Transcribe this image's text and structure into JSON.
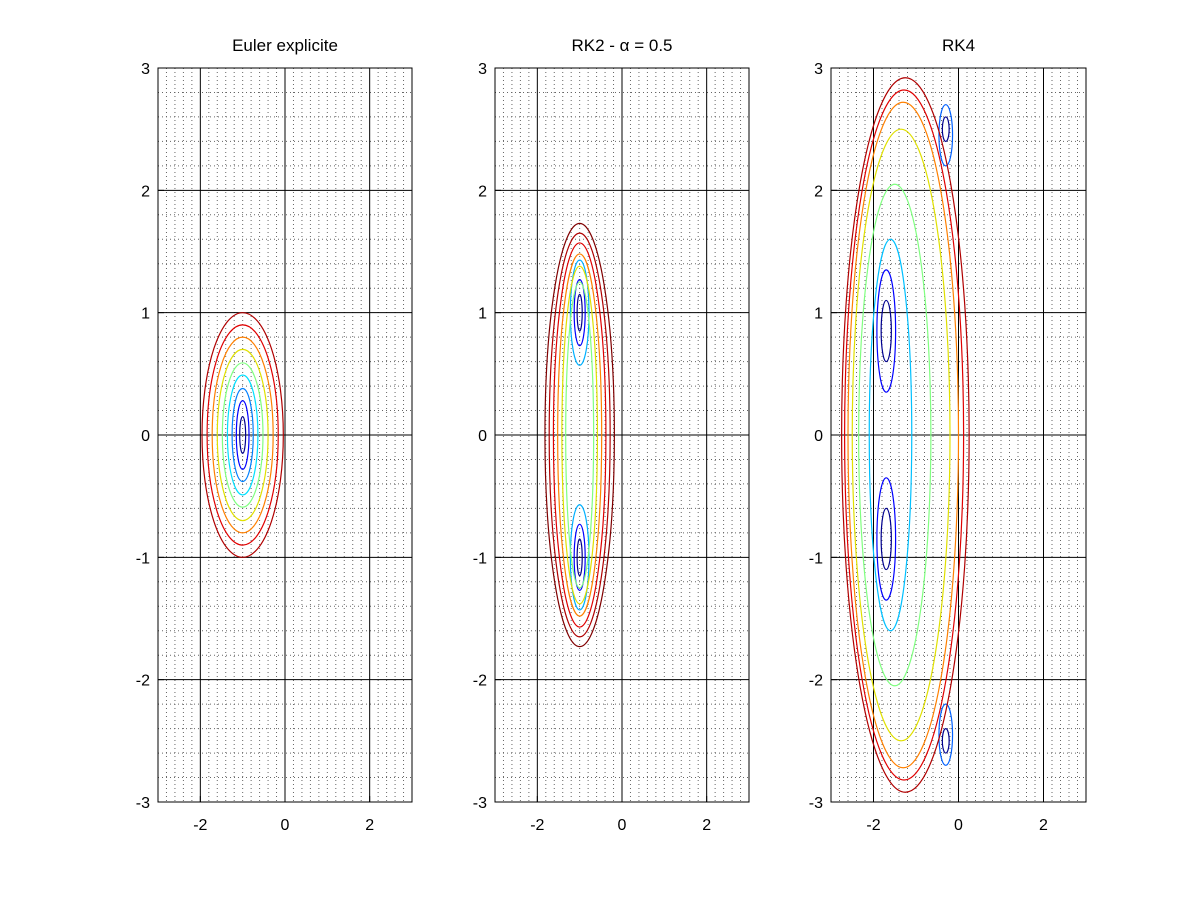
{
  "chart_data": [
    {
      "type": "contour",
      "title": "Euler explicite",
      "xlim": [
        -3,
        3
      ],
      "ylim": [
        -3,
        3
      ],
      "x_ticks": [
        -2,
        0,
        2
      ],
      "y_ticks": [
        -3,
        -2,
        -1,
        0,
        1,
        2,
        3
      ],
      "grid": true,
      "minor_grid": true,
      "centers": [
        [
          -1.0,
          0.0
        ]
      ],
      "contours": [
        {
          "cx": -1.0,
          "cy": 0.0,
          "rx": 0.07,
          "ry": 0.15,
          "color": "#00008f"
        },
        {
          "cx": -1.0,
          "cy": 0.0,
          "rx": 0.15,
          "ry": 0.28,
          "color": "#0000ff"
        },
        {
          "cx": -1.0,
          "cy": 0.0,
          "rx": 0.25,
          "ry": 0.38,
          "color": "#0080ff"
        },
        {
          "cx": -1.0,
          "cy": 0.0,
          "rx": 0.36,
          "ry": 0.49,
          "color": "#00e0ff"
        },
        {
          "cx": -1.0,
          "cy": 0.0,
          "rx": 0.48,
          "ry": 0.59,
          "color": "#80ff80"
        },
        {
          "cx": -1.0,
          "cy": 0.0,
          "rx": 0.6,
          "ry": 0.7,
          "color": "#e0e000"
        },
        {
          "cx": -1.0,
          "cy": 0.0,
          "rx": 0.72,
          "ry": 0.8,
          "color": "#ff8000"
        },
        {
          "cx": -1.0,
          "cy": 0.0,
          "rx": 0.84,
          "ry": 0.9,
          "color": "#e00000"
        },
        {
          "cx": -1.0,
          "cy": 0.0,
          "rx": 0.96,
          "ry": 1.0,
          "color": "#b00000"
        }
      ]
    },
    {
      "type": "contour",
      "title": "RK2 - α = 0.5",
      "xlim": [
        -3,
        3
      ],
      "ylim": [
        -3,
        3
      ],
      "x_ticks": [
        -2,
        0,
        2
      ],
      "y_ticks": [
        -3,
        -2,
        -1,
        0,
        1,
        2,
        3
      ],
      "grid": true,
      "minor_grid": true,
      "centers": [
        [
          -1.0,
          1.0
        ],
        [
          -1.0,
          -1.0
        ]
      ],
      "contours": [
        {
          "cx": -1.0,
          "cy": 1.0,
          "rx": 0.06,
          "ry": 0.15,
          "color": "#00008f"
        },
        {
          "cx": -1.0,
          "cy": -1.0,
          "rx": 0.06,
          "ry": 0.15,
          "color": "#00008f"
        },
        {
          "cx": -1.0,
          "cy": 1.0,
          "rx": 0.13,
          "ry": 0.27,
          "color": "#0000ff"
        },
        {
          "cx": -1.0,
          "cy": -1.0,
          "rx": 0.13,
          "ry": 0.27,
          "color": "#0000ff"
        },
        {
          "cx": -1.0,
          "cy": 1.0,
          "rx": 0.22,
          "ry": 0.43,
          "color": "#00b0ff"
        },
        {
          "cx": -1.0,
          "cy": -1.0,
          "rx": 0.22,
          "ry": 0.43,
          "color": "#00b0ff"
        },
        {
          "cx": -1.0,
          "cy": 0.0,
          "rx": 0.33,
          "ry": 1.25,
          "color": "#80ff80"
        },
        {
          "cx": -1.0,
          "cy": 0.0,
          "rx": 0.42,
          "ry": 1.38,
          "color": "#e0e000"
        },
        {
          "cx": -1.0,
          "cy": 0.0,
          "rx": 0.52,
          "ry": 1.48,
          "color": "#ff8000"
        },
        {
          "cx": -1.0,
          "cy": 0.0,
          "rx": 0.62,
          "ry": 1.57,
          "color": "#e00000"
        },
        {
          "cx": -1.0,
          "cy": 0.0,
          "rx": 0.72,
          "ry": 1.65,
          "color": "#b00000"
        },
        {
          "cx": -1.0,
          "cy": 0.0,
          "rx": 0.82,
          "ry": 1.73,
          "color": "#800000"
        }
      ]
    },
    {
      "type": "contour",
      "title": "RK4",
      "xlim": [
        -3,
        3
      ],
      "ylim": [
        -3,
        3
      ],
      "x_ticks": [
        -2,
        0,
        2
      ],
      "y_ticks": [
        -3,
        -2,
        -1,
        0,
        1,
        2,
        3
      ],
      "grid": true,
      "minor_grid": true,
      "centers": [
        [
          -1.7,
          0.85
        ],
        [
          -1.7,
          -0.85
        ],
        [
          -0.3,
          2.5
        ],
        [
          -0.3,
          -2.5
        ]
      ],
      "contours": [
        {
          "cx": -1.7,
          "cy": 0.85,
          "rx": 0.12,
          "ry": 0.25,
          "color": "#00008f"
        },
        {
          "cx": -1.7,
          "cy": -0.85,
          "rx": 0.12,
          "ry": 0.25,
          "color": "#00008f"
        },
        {
          "cx": -0.3,
          "cy": 2.5,
          "rx": 0.08,
          "ry": 0.1,
          "color": "#00008f"
        },
        {
          "cx": -0.3,
          "cy": -2.5,
          "rx": 0.08,
          "ry": 0.1,
          "color": "#00008f"
        },
        {
          "cx": -0.3,
          "cy": 2.45,
          "rx": 0.16,
          "ry": 0.25,
          "color": "#0060ff"
        },
        {
          "cx": -0.3,
          "cy": -2.45,
          "rx": 0.16,
          "ry": 0.25,
          "color": "#0060ff"
        },
        {
          "cx": -1.7,
          "cy": 0.85,
          "rx": 0.22,
          "ry": 0.5,
          "color": "#0000ff"
        },
        {
          "cx": -1.7,
          "cy": -0.85,
          "rx": 0.22,
          "ry": 0.5,
          "color": "#0000ff"
        },
        {
          "cx": -1.6,
          "cy": 0.0,
          "rx": 0.5,
          "ry": 1.6,
          "color": "#00c0ff"
        },
        {
          "cx": -1.5,
          "cy": 0.0,
          "rx": 0.85,
          "ry": 2.05,
          "color": "#80ff80"
        },
        {
          "cx": -1.35,
          "cy": 0.0,
          "rx": 1.15,
          "ry": 2.5,
          "color": "#e0e000"
        },
        {
          "cx": -1.3,
          "cy": 0.0,
          "rx": 1.3,
          "ry": 2.72,
          "color": "#ff8000"
        },
        {
          "cx": -1.28,
          "cy": 0.0,
          "rx": 1.4,
          "ry": 2.82,
          "color": "#e00000"
        },
        {
          "cx": -1.25,
          "cy": 0.0,
          "rx": 1.5,
          "ry": 2.92,
          "color": "#b00000"
        }
      ]
    }
  ]
}
